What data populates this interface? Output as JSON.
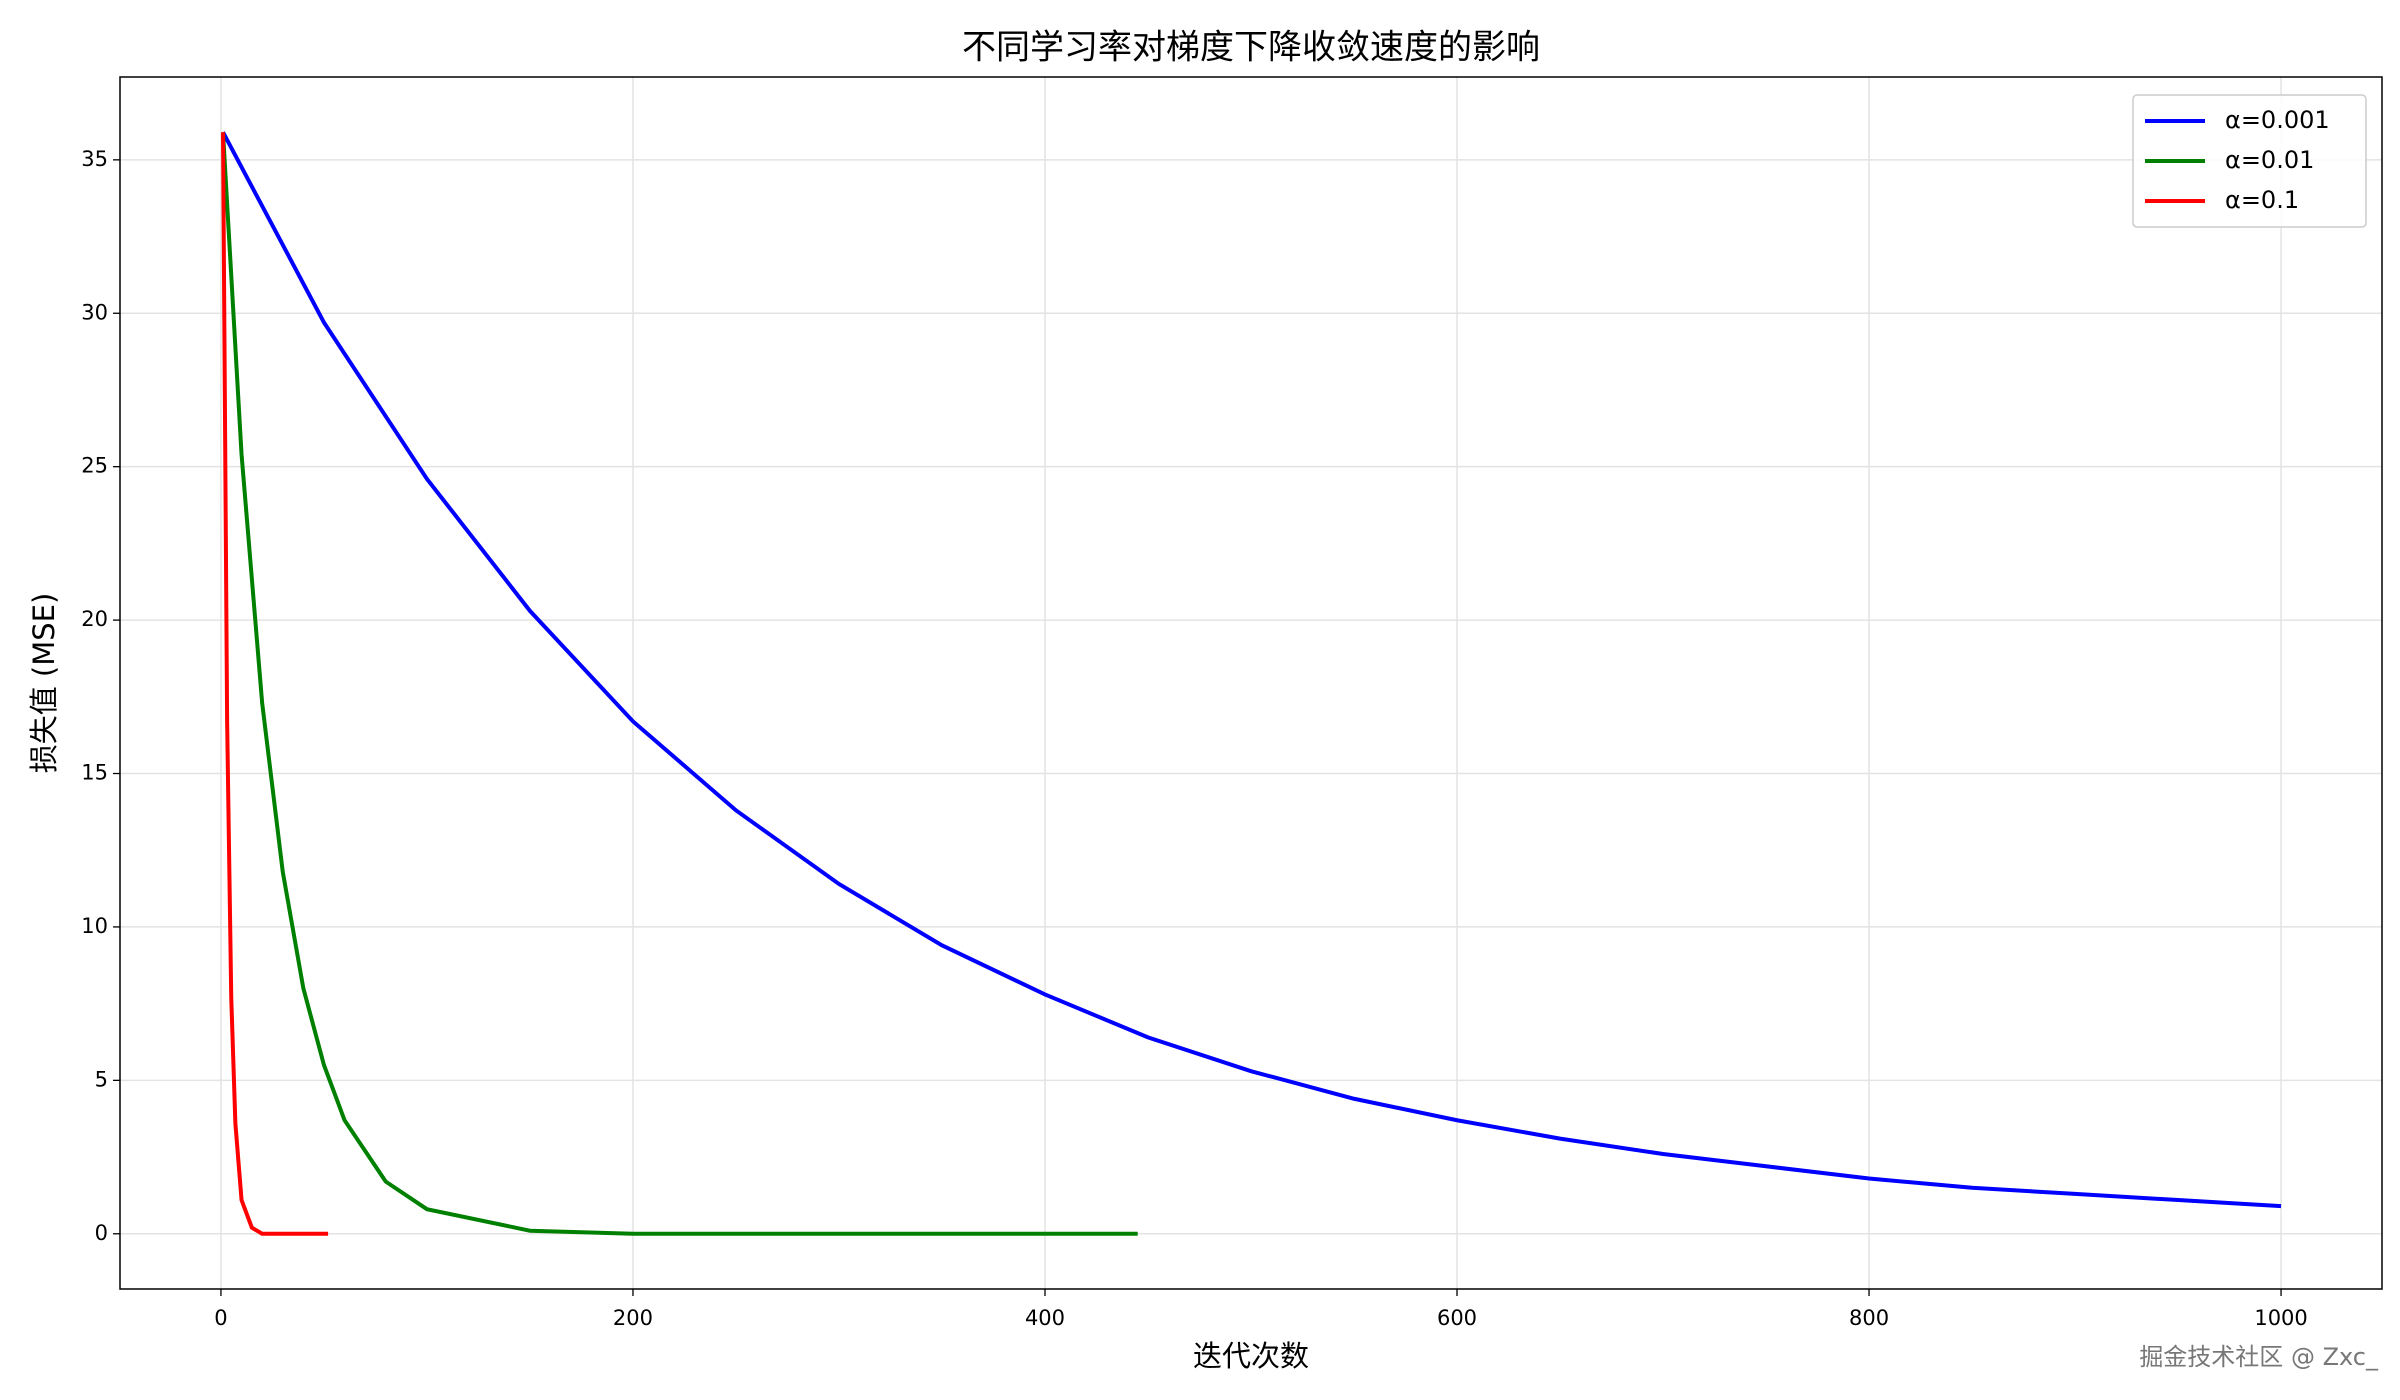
{
  "chart_data": {
    "type": "line",
    "title": "不同学习率对梯度下降收敛速度的影响",
    "x_label": "迭代次数",
    "y_label": "损失值 (MSE)",
    "watermark": "掘金技术社区 @ Zxc_",
    "xlim": [
      -49,
      1049
    ],
    "xticks": [
      0,
      200,
      400,
      600,
      800,
      1000
    ],
    "ylim": [
      -1.8,
      37.7
    ],
    "yticks": [
      0,
      5,
      10,
      15,
      20,
      25,
      30,
      35
    ],
    "grid": true,
    "legend": "upper right",
    "series": [
      {
        "name": "α=0.001",
        "color": "#0000ff",
        "x": [
          1,
          50,
          100,
          150,
          200,
          250,
          300,
          350,
          400,
          450,
          500,
          550,
          600,
          650,
          700,
          750,
          800,
          850,
          900,
          950,
          1000
        ],
        "values": [
          35.9,
          29.7,
          24.6,
          20.3,
          16.7,
          13.8,
          11.4,
          9.4,
          7.8,
          6.4,
          5.3,
          4.4,
          3.7,
          3.1,
          2.6,
          2.2,
          1.8,
          1.5,
          1.3,
          1.1,
          0.9
        ]
      },
      {
        "name": "α=0.01",
        "color": "#008000",
        "x": [
          1,
          10,
          20,
          30,
          40,
          50,
          60,
          80,
          100,
          150,
          200,
          300,
          445
        ],
        "values": [
          35.9,
          25.4,
          17.3,
          11.8,
          8.0,
          5.5,
          3.7,
          1.7,
          0.8,
          0.1,
          0,
          0,
          0
        ]
      },
      {
        "name": "α=0.1",
        "color": "#ff0000",
        "x": [
          1,
          3,
          5,
          7,
          10,
          15,
          20,
          30,
          52
        ],
        "values": [
          35.9,
          16.7,
          7.7,
          3.6,
          1.1,
          0.2,
          0,
          0,
          0
        ]
      }
    ]
  }
}
